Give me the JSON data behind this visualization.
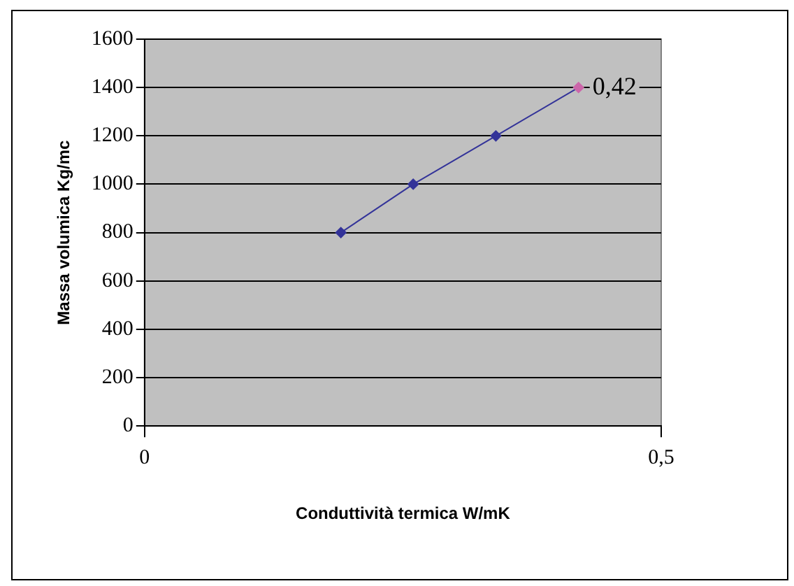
{
  "chart_data": {
    "type": "line",
    "xlabel": "Conduttività termica W/mK",
    "ylabel": "Massa volumica Kg/mc",
    "x": [
      0.19,
      0.26,
      0.34,
      0.42
    ],
    "series": [
      {
        "color": "#333399",
        "colors": [
          "#333399",
          "#333399",
          "#333399",
          "#cc66aa"
        ],
        "values": [
          800,
          1000,
          1200,
          1400
        ]
      }
    ],
    "xlim": [
      0,
      0.5
    ],
    "xticks": [
      0,
      {
        "value": 0.5,
        "label": "0,5"
      }
    ],
    "ylim": [
      0,
      1600
    ],
    "yticks": [
      0,
      200,
      400,
      600,
      800,
      1000,
      1200,
      1400,
      1600
    ],
    "grid": "y",
    "legend": false,
    "marker": "diamond",
    "line_style": "solid",
    "annotations": [
      {
        "text": "0,42",
        "x": 0.42,
        "y": 1400
      }
    ]
  }
}
